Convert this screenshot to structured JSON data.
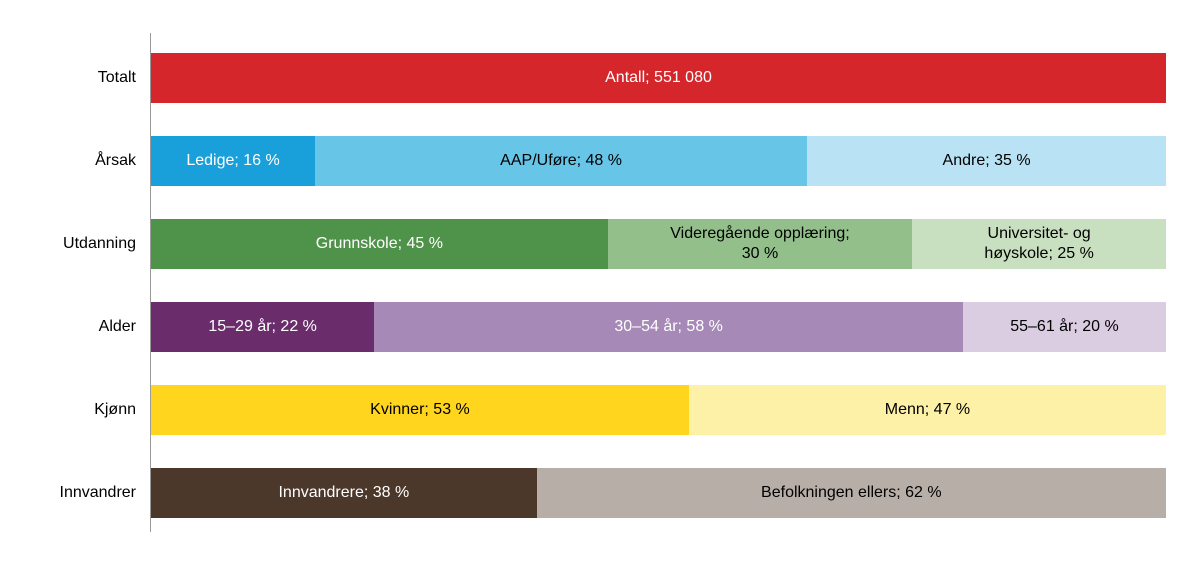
{
  "chart_data": {
    "type": "bar",
    "variant": "horizontal-stacked",
    "title": "",
    "xlabel": "",
    "ylabel": "",
    "legend": "none",
    "grid": false,
    "axis": {
      "line_color": "#9a9a9a"
    },
    "rows": [
      {
        "category": "Totalt",
        "segments": [
          {
            "label": "Antall; 551 080",
            "value": 100,
            "color": "#d5262b",
            "text_color": "#ffffff"
          }
        ]
      },
      {
        "category": "Årsak",
        "segments": [
          {
            "label": "Ledige; 16 %",
            "value": 16,
            "color": "#19a0db",
            "text_color": "#ffffff"
          },
          {
            "label": "AAP/Uføre; 48 %",
            "value": 48,
            "color": "#67c5e8",
            "text_color": "#000000"
          },
          {
            "label": "Andre; 35 %",
            "value": 35,
            "color": "#b9e3f4",
            "text_color": "#000000"
          }
        ]
      },
      {
        "category": "Utdanning",
        "segments": [
          {
            "label": "Grunnskole; 45 %",
            "value": 45,
            "color": "#4f9249",
            "text_color": "#ffffff"
          },
          {
            "label": "Videregående opplæring;\n30 %",
            "value": 30,
            "color": "#93bf8b",
            "text_color": "#000000"
          },
          {
            "label": "Universitet- og\nhøyskole; 25 %",
            "value": 25,
            "color": "#c8dfc0",
            "text_color": "#000000"
          }
        ]
      },
      {
        "category": "Alder",
        "segments": [
          {
            "label": "15–29 år; 22 %",
            "value": 22,
            "color": "#6a2c6b",
            "text_color": "#ffffff"
          },
          {
            "label": "30–54 år; 58 %",
            "value": 58,
            "color": "#a689b6",
            "text_color": "#ffffff"
          },
          {
            "label": "55–61 år; 20 %",
            "value": 20,
            "color": "#dacde1",
            "text_color": "#000000"
          }
        ]
      },
      {
        "category": "Kjønn",
        "segments": [
          {
            "label": "Kvinner; 53 %",
            "value": 53,
            "color": "#ffd51d",
            "text_color": "#000000"
          },
          {
            "label": "Menn; 47 %",
            "value": 47,
            "color": "#fdf0a7",
            "text_color": "#000000"
          }
        ]
      },
      {
        "category": "Innvandrer",
        "segments": [
          {
            "label": "Innvandrere; 38 %",
            "value": 38,
            "color": "#4c382b",
            "text_color": "#ffffff"
          },
          {
            "label": "Befolkningen ellers; 62 %",
            "value": 62,
            "color": "#b8aea8",
            "text_color": "#000000"
          }
        ]
      }
    ]
  }
}
